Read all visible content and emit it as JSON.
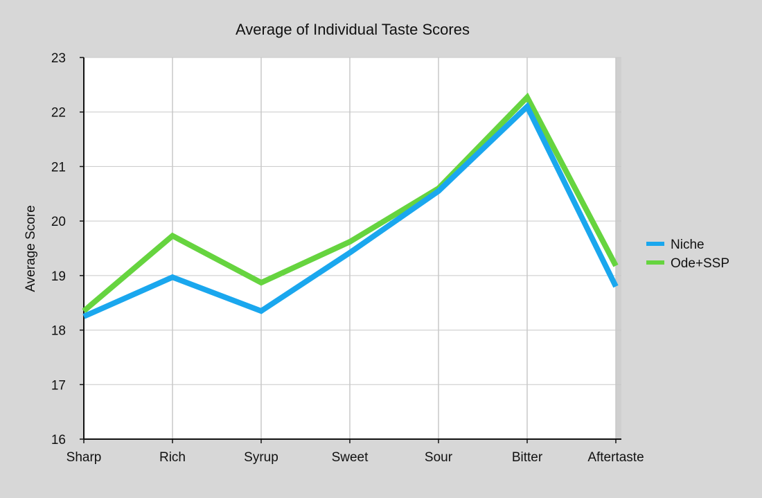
{
  "chart_data": {
    "type": "line",
    "title": "Average of Individual Taste Scores",
    "xlabel": "",
    "ylabel": "Average Score",
    "categories": [
      "Sharp",
      "Rich",
      "Syrup",
      "Sweet",
      "Sour",
      "Bitter",
      "Aftertaste"
    ],
    "ylim": [
      16,
      23
    ],
    "yticks": [
      16,
      17,
      18,
      19,
      20,
      21,
      22,
      23
    ],
    "grid": true,
    "legend_position": "right",
    "series": [
      {
        "name": "Niche",
        "color": "#1aa7ee",
        "values": [
          18.25,
          18.97,
          18.35,
          19.42,
          20.55,
          22.1,
          18.8
        ]
      },
      {
        "name": "Ode+SSP",
        "color": "#66d43f",
        "values": [
          18.35,
          19.73,
          18.87,
          19.62,
          20.6,
          22.27,
          19.18
        ]
      }
    ]
  }
}
